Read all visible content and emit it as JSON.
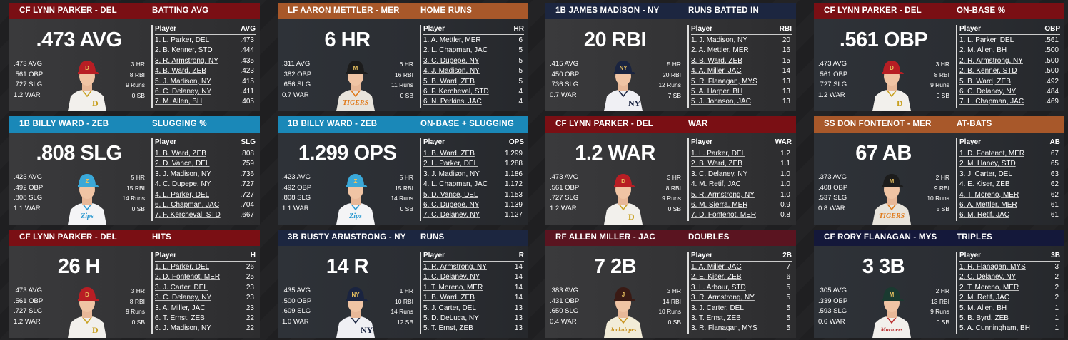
{
  "columns_header": {
    "player": "Player"
  },
  "cards": [
    {
      "player": "CF LYNN PARKER - DEL",
      "stat": "BATTING AVG",
      "big": ".473 AVG",
      "abbr": "AVG",
      "hdr_color": "#7a0f14",
      "cap": "#b81e24",
      "logo": "D",
      "jersey": "#f2f0ec",
      "trim": "#c8a020",
      "left": [
        ".473 AVG",
        ".561 OBP",
        ".727 SLG",
        "1.2 WAR"
      ],
      "right": [
        "3 HR",
        "8 RBI",
        "9 Runs",
        "0 SB"
      ],
      "rows": [
        [
          "1. L. Parker, DEL",
          ".473"
        ],
        [
          "2. B. Kenner, STD",
          ".444"
        ],
        [
          "3. R. Armstrong, NY",
          ".435"
        ],
        [
          "4. B. Ward, ZEB",
          ".423"
        ],
        [
          "5. J. Madison, NY",
          ".415"
        ],
        [
          "6. C. Delaney, NY",
          ".411"
        ],
        [
          "7. M. Allen, BH",
          ".405"
        ]
      ]
    },
    {
      "player": "LF AARON METTLER - MER",
      "stat": "HOME RUNS",
      "big": "6 HR",
      "abbr": "HR",
      "hdr_color": "#a8582a",
      "cap": "#1c1c1c",
      "logo": "M",
      "jersey": "#e8e4dc",
      "trim": "#e07a1a",
      "jtext": "TIGERS",
      "left": [
        ".311 AVG",
        ".382 OBP",
        ".656 SLG",
        "0.7 WAR"
      ],
      "right": [
        "6 HR",
        "16 RBI",
        "11 Runs",
        "0 SB"
      ],
      "rows": [
        [
          "1. A. Mettler, MER",
          "6"
        ],
        [
          "2. L. Chapman, JAC",
          "5"
        ],
        [
          "3. C. Dupepe, NY",
          "5"
        ],
        [
          "4. J. Madison, NY",
          "5"
        ],
        [
          "5. B. Ward, ZEB",
          "5"
        ],
        [
          "6. F. Kercheval, STD",
          "4"
        ],
        [
          "6. N. Perkins, JAC",
          "4"
        ]
      ]
    },
    {
      "player": "1B JAMES MADISON - NY",
      "stat": "RUNS BATTED IN",
      "big": "20 RBI",
      "abbr": "RBI",
      "hdr_color": "#1c2640",
      "cap": "#1a2440",
      "logo": "NY",
      "jersey": "#f0f0f4",
      "trim": "#1a2440",
      "left": [
        ".415 AVG",
        ".450 OBP",
        ".736 SLG",
        "0.7 WAR"
      ],
      "right": [
        "5 HR",
        "20 RBI",
        "12 Runs",
        "7 SB"
      ],
      "rows": [
        [
          "1. J. Madison, NY",
          "20"
        ],
        [
          "2. A. Mettler, MER",
          "16"
        ],
        [
          "3. B. Ward, ZEB",
          "15"
        ],
        [
          "4. A. Miller, JAC",
          "14"
        ],
        [
          "5. R. Flanagan, MYS",
          "13"
        ],
        [
          "5. A. Harper, BH",
          "13"
        ],
        [
          "5. J. Johnson, JAC",
          "13"
        ]
      ]
    },
    {
      "player": "CF LYNN PARKER - DEL",
      "stat": "ON-BASE %",
      "big": ".561 OBP",
      "abbr": "OBP",
      "hdr_color": "#7a0f14",
      "cap": "#b81e24",
      "logo": "D",
      "jersey": "#f2f0ec",
      "trim": "#c8a020",
      "left": [
        ".473 AVG",
        ".561 OBP",
        ".727 SLG",
        "1.2 WAR"
      ],
      "right": [
        "3 HR",
        "8 RBI",
        "9 Runs",
        "0 SB"
      ],
      "rows": [
        [
          "1. L. Parker, DEL",
          ".561"
        ],
        [
          "2. M. Allen, BH",
          ".500"
        ],
        [
          "2. R. Armstrong, NY",
          ".500"
        ],
        [
          "2. B. Kenner, STD",
          ".500"
        ],
        [
          "5. B. Ward, ZEB",
          ".492"
        ],
        [
          "6. C. Delaney, NY",
          ".484"
        ],
        [
          "7. L. Chapman, JAC",
          ".469"
        ]
      ]
    },
    {
      "player": "1B BILLY WARD - ZEB",
      "stat": "SLUGGING %",
      "big": ".808 SLG",
      "abbr": "SLG",
      "hdr_color": "#1a88b8",
      "cap": "#3aa8d8",
      "logo": "Z",
      "jersey": "#f4f4f6",
      "trim": "#2a98d0",
      "jtext": "Zips",
      "left": [
        ".423 AVG",
        ".492 OBP",
        ".808 SLG",
        "1.1 WAR"
      ],
      "right": [
        "5 HR",
        "15 RBI",
        "14 Runs",
        "0 SB"
      ],
      "rows": [
        [
          "1. B. Ward, ZEB",
          ".808"
        ],
        [
          "2. D. Vance, DEL",
          ".759"
        ],
        [
          "3. J. Madison, NY",
          ".736"
        ],
        [
          "4. C. Dupepe, NY",
          ".727"
        ],
        [
          "4. L. Parker, DEL",
          ".727"
        ],
        [
          "6. L. Chapman, JAC",
          ".704"
        ],
        [
          "7. F. Kercheval, STD",
          ".667"
        ]
      ]
    },
    {
      "player": "1B BILLY WARD - ZEB",
      "stat": "ON-BASE + SLUGGING",
      "big": "1.299 OPS",
      "abbr": "OPS",
      "hdr_color": "#1a88b8",
      "cap": "#3aa8d8",
      "logo": "Z",
      "jersey": "#f4f4f6",
      "trim": "#2a98d0",
      "jtext": "Zips",
      "left": [
        ".423 AVG",
        ".492 OBP",
        ".808 SLG",
        "1.1 WAR"
      ],
      "right": [
        "5 HR",
        "15 RBI",
        "14 Runs",
        "0 SB"
      ],
      "rows": [
        [
          "1. B. Ward, ZEB",
          "1.299"
        ],
        [
          "2. L. Parker, DEL",
          "1.288"
        ],
        [
          "3. J. Madison, NY",
          "1.186"
        ],
        [
          "4. L. Chapman, JAC",
          "1.172"
        ],
        [
          "5. D. Vance, DEL",
          "1.153"
        ],
        [
          "6. C. Dupepe, NY",
          "1.139"
        ],
        [
          "7. C. Delaney, NY",
          "1.127"
        ]
      ]
    },
    {
      "player": "CF LYNN PARKER - DEL",
      "stat": "WAR",
      "big": "1.2 WAR",
      "abbr": "WAR",
      "hdr_color": "#7a0f14",
      "cap": "#b81e24",
      "logo": "D",
      "jersey": "#f2f0ec",
      "trim": "#c8a020",
      "left": [
        ".473 AVG",
        ".561 OBP",
        ".727 SLG",
        "1.2 WAR"
      ],
      "right": [
        "3 HR",
        "8 RBI",
        "9 Runs",
        "0 SB"
      ],
      "rows": [
        [
          "1. L. Parker, DEL",
          "1.2"
        ],
        [
          "2. B. Ward, ZEB",
          "1.1"
        ],
        [
          "3. C. Delaney, NY",
          "1.0"
        ],
        [
          "4. M. Retif, JAC",
          "1.0"
        ],
        [
          "5. R. Armstrong, NY",
          "1.0"
        ],
        [
          "6. M. Sierra, MER",
          "0.9"
        ],
        [
          "7. D. Fontenot, MER",
          "0.8"
        ]
      ]
    },
    {
      "player": "SS DON FONTENOT - MER",
      "stat": "AT-BATS",
      "big": "67 AB",
      "abbr": "AB",
      "hdr_color": "#a8582a",
      "cap": "#1c1c1c",
      "logo": "M",
      "jersey": "#e8e4dc",
      "trim": "#e07a1a",
      "jtext": "TIGERS",
      "left": [
        ".373 AVG",
        ".408 OBP",
        ".537 SLG",
        "0.8 WAR"
      ],
      "right": [
        "2 HR",
        "9 RBI",
        "10 Runs",
        "5 SB"
      ],
      "rows": [
        [
          "1. D. Fontenot, MER",
          "67"
        ],
        [
          "2. M. Haney, STD",
          "65"
        ],
        [
          "3. J. Carter, DEL",
          "63"
        ],
        [
          "4. E. Kiser, ZEB",
          "62"
        ],
        [
          "4. T. Moreno, MER",
          "62"
        ],
        [
          "6. A. Mettler, MER",
          "61"
        ],
        [
          "6. M. Retif, JAC",
          "61"
        ]
      ]
    },
    {
      "player": "CF LYNN PARKER - DEL",
      "stat": "HITS",
      "big": "26 H",
      "abbr": "H",
      "hdr_color": "#7a0f14",
      "cap": "#b81e24",
      "logo": "D",
      "jersey": "#f2f0ec",
      "trim": "#c8a020",
      "left": [
        ".473 AVG",
        ".561 OBP",
        ".727 SLG",
        "1.2 WAR"
      ],
      "right": [
        "3 HR",
        "8 RBI",
        "9 Runs",
        "0 SB"
      ],
      "rows": [
        [
          "1. L. Parker, DEL",
          "26"
        ],
        [
          "2. D. Fontenot, MER",
          "25"
        ],
        [
          "3. J. Carter, DEL",
          "23"
        ],
        [
          "3. C. Delaney, NY",
          "23"
        ],
        [
          "3. A. Miller, JAC",
          "23"
        ],
        [
          "6. T. Ernst, ZEB",
          "22"
        ],
        [
          "6. J. Madison, NY",
          "22"
        ]
      ]
    },
    {
      "player": "3B RUSTY ARMSTRONG - NY",
      "stat": "RUNS",
      "big": "14 R",
      "abbr": "R",
      "hdr_color": "#1c2640",
      "cap": "#1a2440",
      "logo": "NY",
      "jersey": "#f0f0f4",
      "trim": "#1a2440",
      "left": [
        ".435 AVG",
        ".500 OBP",
        ".609 SLG",
        "1.0 WAR"
      ],
      "right": [
        "1 HR",
        "10 RBI",
        "14 Runs",
        "12 SB"
      ],
      "rows": [
        [
          "1. R. Armstrong, NY",
          "14"
        ],
        [
          "1. C. Delaney, NY",
          "14"
        ],
        [
          "1. T. Moreno, MER",
          "14"
        ],
        [
          "1. B. Ward, ZEB",
          "14"
        ],
        [
          "5. J. Carter, DEL",
          "13"
        ],
        [
          "5. D. DeLuca, NY",
          "13"
        ],
        [
          "5. T. Ernst, ZEB",
          "13"
        ]
      ]
    },
    {
      "player": "RF ALLEN MILLER - JAC",
      "stat": "DOUBLES",
      "big": "7 2B",
      "abbr": "2B",
      "hdr_color": "#5a1420",
      "cap": "#3a1a14",
      "logo": "J",
      "jersey": "#f2ecd8",
      "trim": "#c8901a",
      "jtext": "Jackalopes",
      "left": [
        ".383 AVG",
        ".431 OBP",
        ".650 SLG",
        "0.4 WAR"
      ],
      "right": [
        "3 HR",
        "14 RBI",
        "10 Runs",
        "0 SB"
      ],
      "rows": [
        [
          "1. A. Miller, JAC",
          "7"
        ],
        [
          "2. E. Kiser, ZEB",
          "6"
        ],
        [
          "3. L. Arbour, STD",
          "5"
        ],
        [
          "3. R. Armstrong, NY",
          "5"
        ],
        [
          "3. J. Carter, DEL",
          "5"
        ],
        [
          "3. T. Ernst, ZEB",
          "5"
        ],
        [
          "3. R. Flanagan, MYS",
          "5"
        ]
      ]
    },
    {
      "player": "CF RORY FLANAGAN - MYS",
      "stat": "TRIPLES",
      "big": "3 3B",
      "abbr": "3B",
      "hdr_color": "#14183a",
      "cap": "#1a3a30",
      "logo": "M",
      "jersey": "#f2f0ec",
      "trim": "#b82a2a",
      "jtext": "Mariners",
      "left": [
        ".305 AVG",
        ".339 OBP",
        ".593 SLG",
        "0.6 WAR"
      ],
      "right": [
        "2 HR",
        "13 RBI",
        "9 Runs",
        "0 SB"
      ],
      "rows": [
        [
          "1. R. Flanagan, MYS",
          "3"
        ],
        [
          "2. C. Delaney, NY",
          "2"
        ],
        [
          "2. T. Moreno, MER",
          "2"
        ],
        [
          "2. M. Retif, JAC",
          "2"
        ],
        [
          "5. M. Allen, BH",
          "1"
        ],
        [
          "5. B. Byrd, ZEB",
          "1"
        ],
        [
          "5. A. Cunningham, BH",
          "1"
        ]
      ]
    }
  ]
}
